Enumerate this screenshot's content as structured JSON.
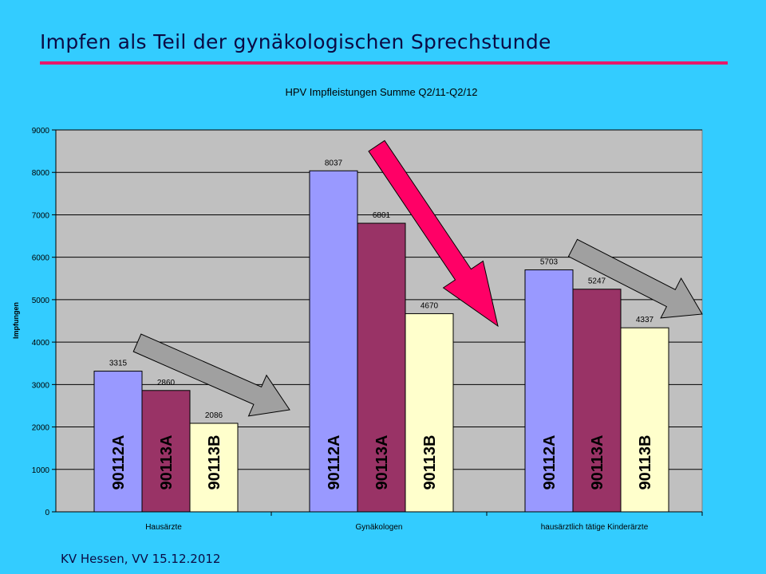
{
  "slide": {
    "title": "Impfen als Teil der gynäkologischen Sprechstunde",
    "footer": "KV Hessen, VV 15.12.2012",
    "accent_color": "#e6196b",
    "background_color": "#33ccff"
  },
  "chart_data": {
    "type": "bar",
    "title": "HPV Impfleistungen Summe Q2/11-Q2/12",
    "xlabel": "",
    "ylabel": "Impfungen",
    "ylim": [
      0,
      9000
    ],
    "yticks": [
      0,
      1000,
      2000,
      3000,
      4000,
      5000,
      6000,
      7000,
      8000,
      9000
    ],
    "grid": true,
    "legend": "none",
    "categories": [
      "Hausärzte",
      "Gynäkologen",
      "hausärztlich tätige Kinderärzte"
    ],
    "series": [
      {
        "name": "90112A",
        "color": "#9999ff",
        "values": [
          3315,
          8037,
          5703
        ]
      },
      {
        "name": "90113A",
        "color": "#993366",
        "values": [
          2860,
          6801,
          5247
        ]
      },
      {
        "name": "90113B",
        "color": "#ffffcc",
        "values": [
          2086,
          4670,
          4337
        ]
      }
    ],
    "annotations": [
      {
        "type": "arrow",
        "name": "gray-arrow-hausaerzte",
        "color": "#a0a0a0",
        "direction": "down-right"
      },
      {
        "type": "arrow",
        "name": "pink-arrow-gynaekologen",
        "color": "#ff0066",
        "direction": "down-right"
      },
      {
        "type": "arrow",
        "name": "gray-arrow-kinderaerzte",
        "color": "#a0a0a0",
        "direction": "down-right"
      }
    ]
  }
}
